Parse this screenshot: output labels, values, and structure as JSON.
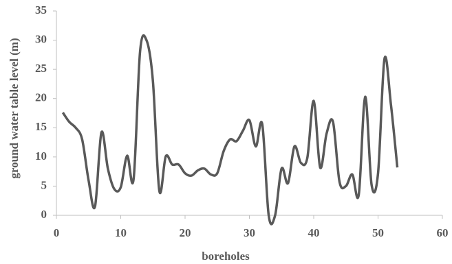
{
  "chart_data": {
    "type": "line",
    "x_label": "boreholes",
    "y_label": "ground water table level (m)",
    "x": [
      1,
      2,
      3,
      4,
      5,
      6,
      7,
      8,
      9,
      10,
      11,
      12,
      13,
      14,
      15,
      16,
      17,
      18,
      19,
      20,
      21,
      22,
      23,
      24,
      25,
      26,
      27,
      28,
      29,
      30,
      31,
      32,
      33,
      34,
      35,
      36,
      37,
      38,
      39,
      40,
      41,
      42,
      43,
      44,
      45,
      46,
      47,
      48,
      49,
      50,
      51,
      52,
      53
    ],
    "series": [
      {
        "color": "#595959",
        "values": [
          17.6,
          16,
          15,
          13,
          6,
          1.5,
          14.2,
          8,
          4.5,
          4.8,
          10.2,
          6.2,
          28,
          30,
          23,
          4.2,
          10.1,
          8.7,
          8.7,
          7.2,
          6.8,
          7.7,
          8,
          7,
          7.2,
          11,
          13,
          12.7,
          14.5,
          16.3,
          11.8,
          15.6,
          0,
          0,
          8,
          5.5,
          11.8,
          9,
          9.8,
          19.6,
          8.2,
          14,
          16,
          5.8,
          5,
          7,
          3.5,
          20.3,
          5.2,
          7.2,
          26.8,
          19,
          8.2
        ]
      }
    ],
    "xlim": [
      0,
      60
    ],
    "xticks": [
      0,
      10,
      20,
      30,
      40,
      50,
      60
    ],
    "ylim": [
      0,
      35
    ],
    "yticks": [
      0,
      5,
      10,
      15,
      20,
      25,
      30,
      35
    ]
  }
}
